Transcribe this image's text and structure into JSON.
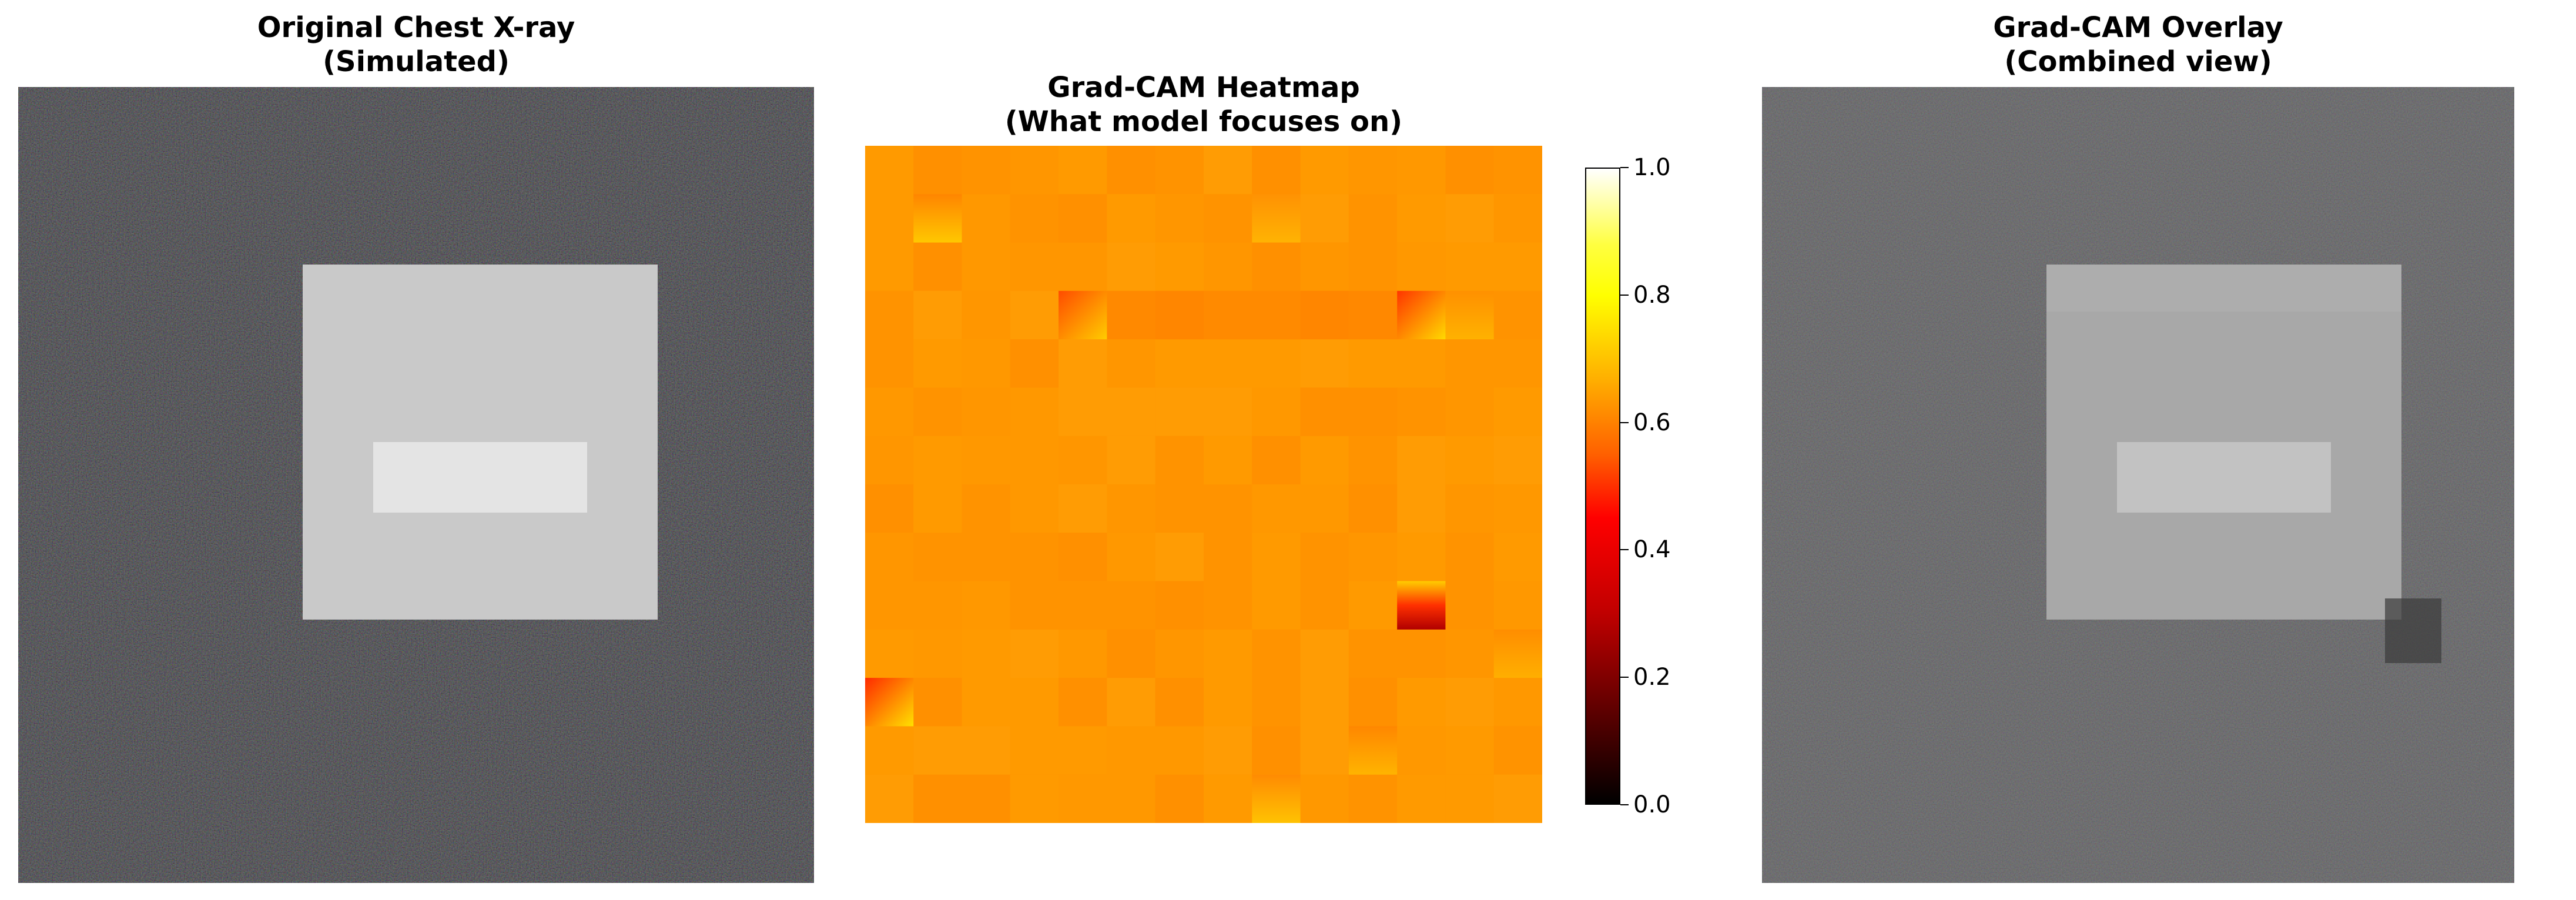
{
  "panels": [
    {
      "title_line1": "Original Chest X-ray",
      "title_line2": "(Simulated)"
    },
    {
      "title_line1": "Grad-CAM Heatmap",
      "title_line2": "(What model focuses on)"
    },
    {
      "title_line1": "Grad-CAM Overlay",
      "title_line2": "(Combined view)"
    }
  ],
  "colorbar": {
    "ticks": [
      "1.0",
      "0.8",
      "0.6",
      "0.4",
      "0.2",
      "0.0"
    ],
    "colormap": "hot",
    "range": [
      0.0,
      1.0
    ]
  },
  "colors": {
    "xray_background": "#2a2a2a",
    "xray_square": "#c9c9c9",
    "xray_rect": "#e4e4e4",
    "heatmap_base": "#ff9500",
    "overlay_background": "#5a5a5a",
    "overlay_square": "#a8a8a8",
    "overlay_rect": "#c2c2c2"
  }
}
